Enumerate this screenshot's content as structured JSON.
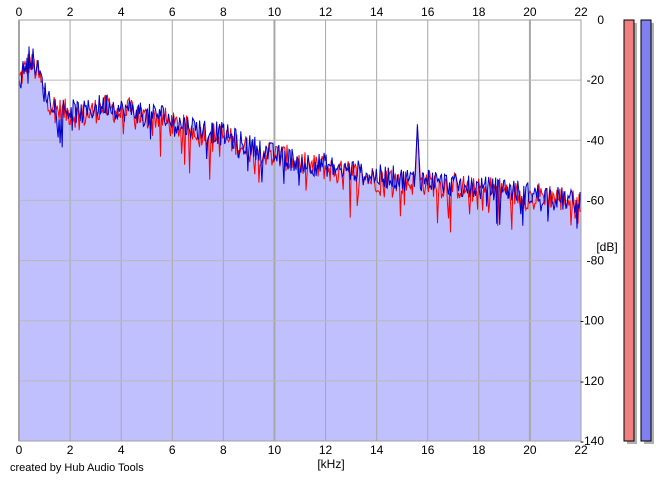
{
  "credit": "created by Hub Audio Tools",
  "chart_data": {
    "type": "area",
    "title": "",
    "xlabel": "[kHz]",
    "ylabel": "[dB]",
    "xlim": [
      0,
      22
    ],
    "ylim": [
      -140,
      0
    ],
    "x_ticks": [
      0,
      2,
      4,
      6,
      8,
      10,
      12,
      14,
      16,
      18,
      20,
      22
    ],
    "y_ticks": [
      0,
      -20,
      -40,
      -60,
      -80,
      -100,
      -120,
      -140
    ],
    "y_tick_labels": [
      "0",
      "-20",
      "-40",
      "-60",
      "-80",
      "-100",
      "-120",
      "-140"
    ],
    "grid": true,
    "series": [
      {
        "channel": "left",
        "color": "#ff0000",
        "x": [
          0,
          0.2,
          0.4,
          0.6,
          0.8,
          1,
          1.5,
          2,
          2.5,
          3,
          3.5,
          4,
          4.5,
          5,
          5.5,
          6,
          6.5,
          7,
          7.5,
          8,
          8.5,
          9,
          9.5,
          10,
          10.5,
          11,
          11.5,
          12,
          12.5,
          13,
          13.5,
          14,
          14.5,
          15,
          15.5,
          15.6,
          15.7,
          16,
          16.5,
          17,
          17.5,
          18,
          18.5,
          19,
          19.5,
          20,
          20.5,
          21,
          21.5,
          22
        ],
        "values": [
          -20,
          -17,
          -14,
          -16,
          -19,
          -25,
          -30,
          -31,
          -32,
          -30,
          -29,
          -31,
          -30,
          -33,
          -32,
          -35,
          -36,
          -37,
          -38,
          -39,
          -41,
          -43,
          -44,
          -45,
          -46,
          -48,
          -49,
          -49,
          -51,
          -51,
          -52,
          -53,
          -52,
          -54,
          -54,
          -35,
          -54,
          -54,
          -55,
          -55,
          -56,
          -57,
          -56,
          -57,
          -58,
          -59,
          -58,
          -59,
          -60,
          -62
        ]
      },
      {
        "channel": "right",
        "color": "#0000cc",
        "x": [
          0,
          0.2,
          0.4,
          0.6,
          0.8,
          1,
          1.5,
          2,
          2.5,
          3,
          3.5,
          4,
          4.5,
          5,
          5.5,
          6,
          6.5,
          7,
          7.5,
          8,
          8.5,
          9,
          9.5,
          10,
          10.5,
          11,
          11.5,
          12,
          12.5,
          13,
          13.5,
          14,
          14.5,
          15,
          15.5,
          15.6,
          15.7,
          16,
          16.5,
          17,
          17.5,
          18,
          18.5,
          19,
          19.5,
          20,
          20.5,
          21,
          21.5,
          22
        ],
        "values": [
          -21,
          -16,
          -11,
          -14,
          -18,
          -24,
          -29,
          -30,
          -31,
          -29,
          -28,
          -30,
          -30,
          -32,
          -31,
          -34,
          -35,
          -36,
          -37,
          -38,
          -40,
          -42,
          -43,
          -45,
          -46,
          -47,
          -48,
          -48,
          -50,
          -50,
          -51,
          -52,
          -52,
          -53,
          -53,
          -34,
          -53,
          -53,
          -54,
          -55,
          -55,
          -56,
          -56,
          -56,
          -57,
          -58,
          -58,
          -59,
          -60,
          -61
        ]
      }
    ],
    "level_meters": [
      {
        "channel": "left",
        "color": "#f08080"
      },
      {
        "channel": "right",
        "color": "#8080f0"
      }
    ],
    "fill_color": "#c0c0ff",
    "frame_color": "#a0a0a0"
  }
}
